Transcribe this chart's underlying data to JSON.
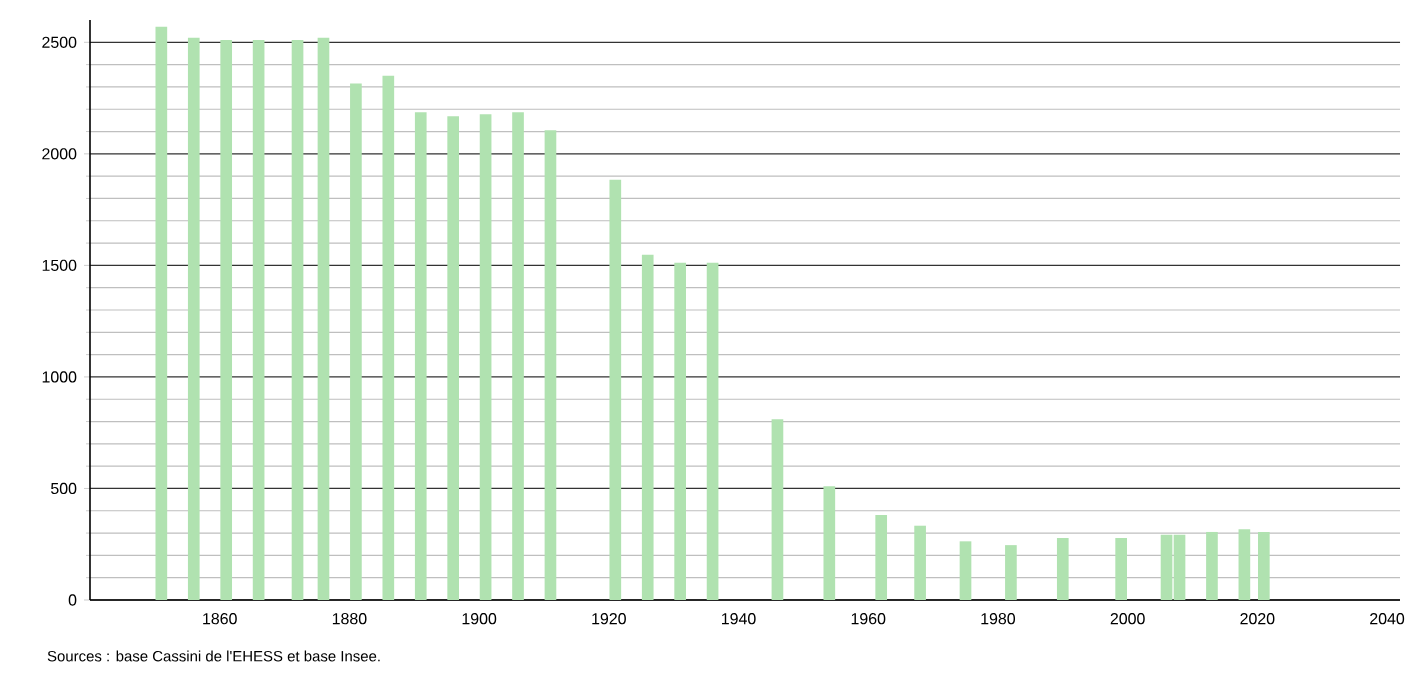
{
  "chart_data": {
    "type": "bar",
    "x": [
      1851,
      1856,
      1861,
      1866,
      1872,
      1876,
      1881,
      1886,
      1891,
      1896,
      1901,
      1906,
      1911,
      1921,
      1926,
      1931,
      1936,
      1946,
      1954,
      1962,
      1968,
      1975,
      1982,
      1990,
      1999,
      2006,
      2008,
      2013,
      2018,
      2021
    ],
    "values": [
      2570,
      2520,
      2510,
      2510,
      2510,
      2520,
      2315,
      2350,
      2187,
      2169,
      2178,
      2187,
      2106,
      1884,
      1548,
      1512,
      1512,
      810,
      510,
      381,
      333,
      263,
      246,
      278,
      278,
      293,
      293,
      305,
      317,
      305
    ],
    "color": "#b0e2b0",
    "xlim": [
      1840,
      2042
    ],
    "xticks": [
      1860,
      1880,
      1900,
      1920,
      1940,
      1960,
      1980,
      2000,
      2020,
      2040
    ],
    "ylim": [
      0,
      2600
    ],
    "yticks": [
      0,
      500,
      1000,
      1500,
      2000,
      2500
    ],
    "grid": "y",
    "annotations": [
      "Sources : base Cassini de l'EHESS et base Insee."
    ]
  }
}
